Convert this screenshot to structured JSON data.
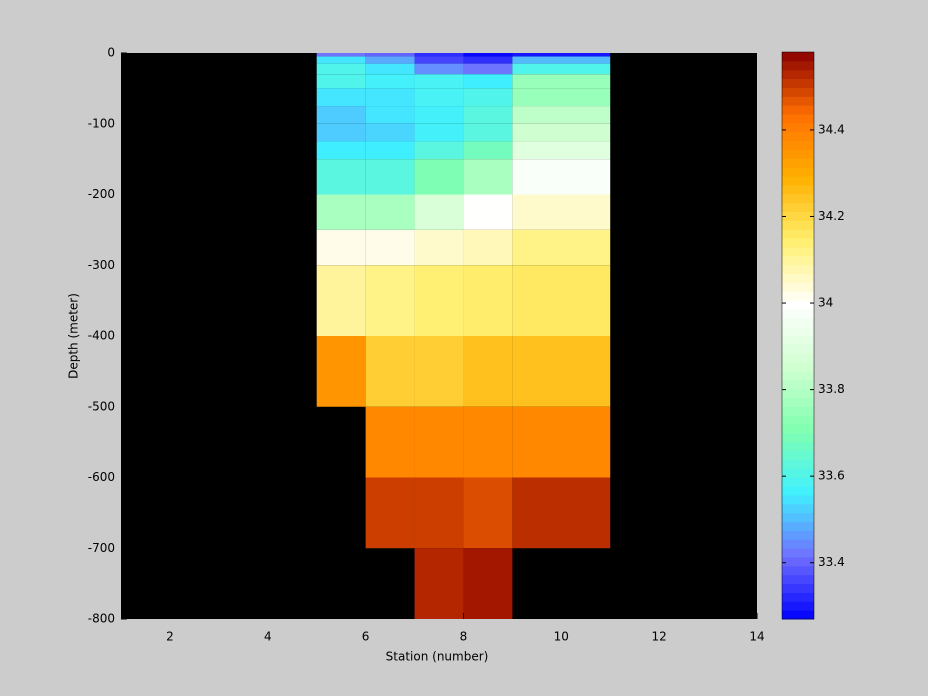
{
  "chart_data": {
    "type": "heatmap",
    "xlabel": "Station (number)",
    "ylabel": "Depth (meter)",
    "xlim": [
      1,
      14
    ],
    "xticks": [
      2,
      4,
      6,
      8,
      10,
      12,
      14
    ],
    "ylim": [
      -800,
      0
    ],
    "yticks": [
      0,
      -100,
      -200,
      -300,
      -400,
      -500,
      -600,
      -700,
      -800
    ],
    "x_edges": [
      5,
      6,
      7,
      8,
      9,
      11
    ],
    "y_edges": [
      0,
      -5,
      -15,
      -30,
      -50,
      -75,
      -100,
      -125,
      -150,
      -200,
      -250,
      -300,
      -400,
      -500,
      -600,
      -700,
      -800
    ],
    "values": [
      [
        33.42,
        33.4,
        33.33,
        33.28,
        33.3
      ],
      [
        33.55,
        33.48,
        33.36,
        33.33,
        33.5
      ],
      [
        33.6,
        33.55,
        33.45,
        33.42,
        33.6
      ],
      [
        33.6,
        33.57,
        33.58,
        33.56,
        33.75
      ],
      [
        33.55,
        33.55,
        33.58,
        33.6,
        33.75
      ],
      [
        33.52,
        33.55,
        33.57,
        33.62,
        33.82
      ],
      [
        33.52,
        33.53,
        33.57,
        33.62,
        33.85
      ],
      [
        33.56,
        33.56,
        33.62,
        33.68,
        33.9
      ],
      [
        33.62,
        33.62,
        33.7,
        33.78,
        33.98
      ],
      [
        33.78,
        33.78,
        33.88,
        34.0,
        34.05
      ],
      [
        34.02,
        34.02,
        34.05,
        34.07,
        34.12
      ],
      [
        34.1,
        34.12,
        34.14,
        34.15,
        34.16
      ],
      [
        34.35,
        34.22,
        34.22,
        34.25,
        34.25
      ],
      [
        null,
        34.38,
        34.38,
        34.38,
        34.38
      ],
      [
        null,
        34.5,
        34.5,
        34.48,
        34.52
      ],
      [
        null,
        null,
        34.53,
        34.55,
        null
      ]
    ],
    "background": "#000000",
    "colormap": [
      "#0000ff",
      "#7070ff",
      "#40f0ff",
      "#80ffb0",
      "#d0ffd0",
      "#ffffff",
      "#fff070",
      "#ffb000",
      "#ff7000",
      "#8b0000"
    ],
    "clim": [
      33.27,
      34.58
    ],
    "colorbar_ticks": [
      33.4,
      33.6,
      33.8,
      34,
      34.2,
      34.4
    ]
  }
}
